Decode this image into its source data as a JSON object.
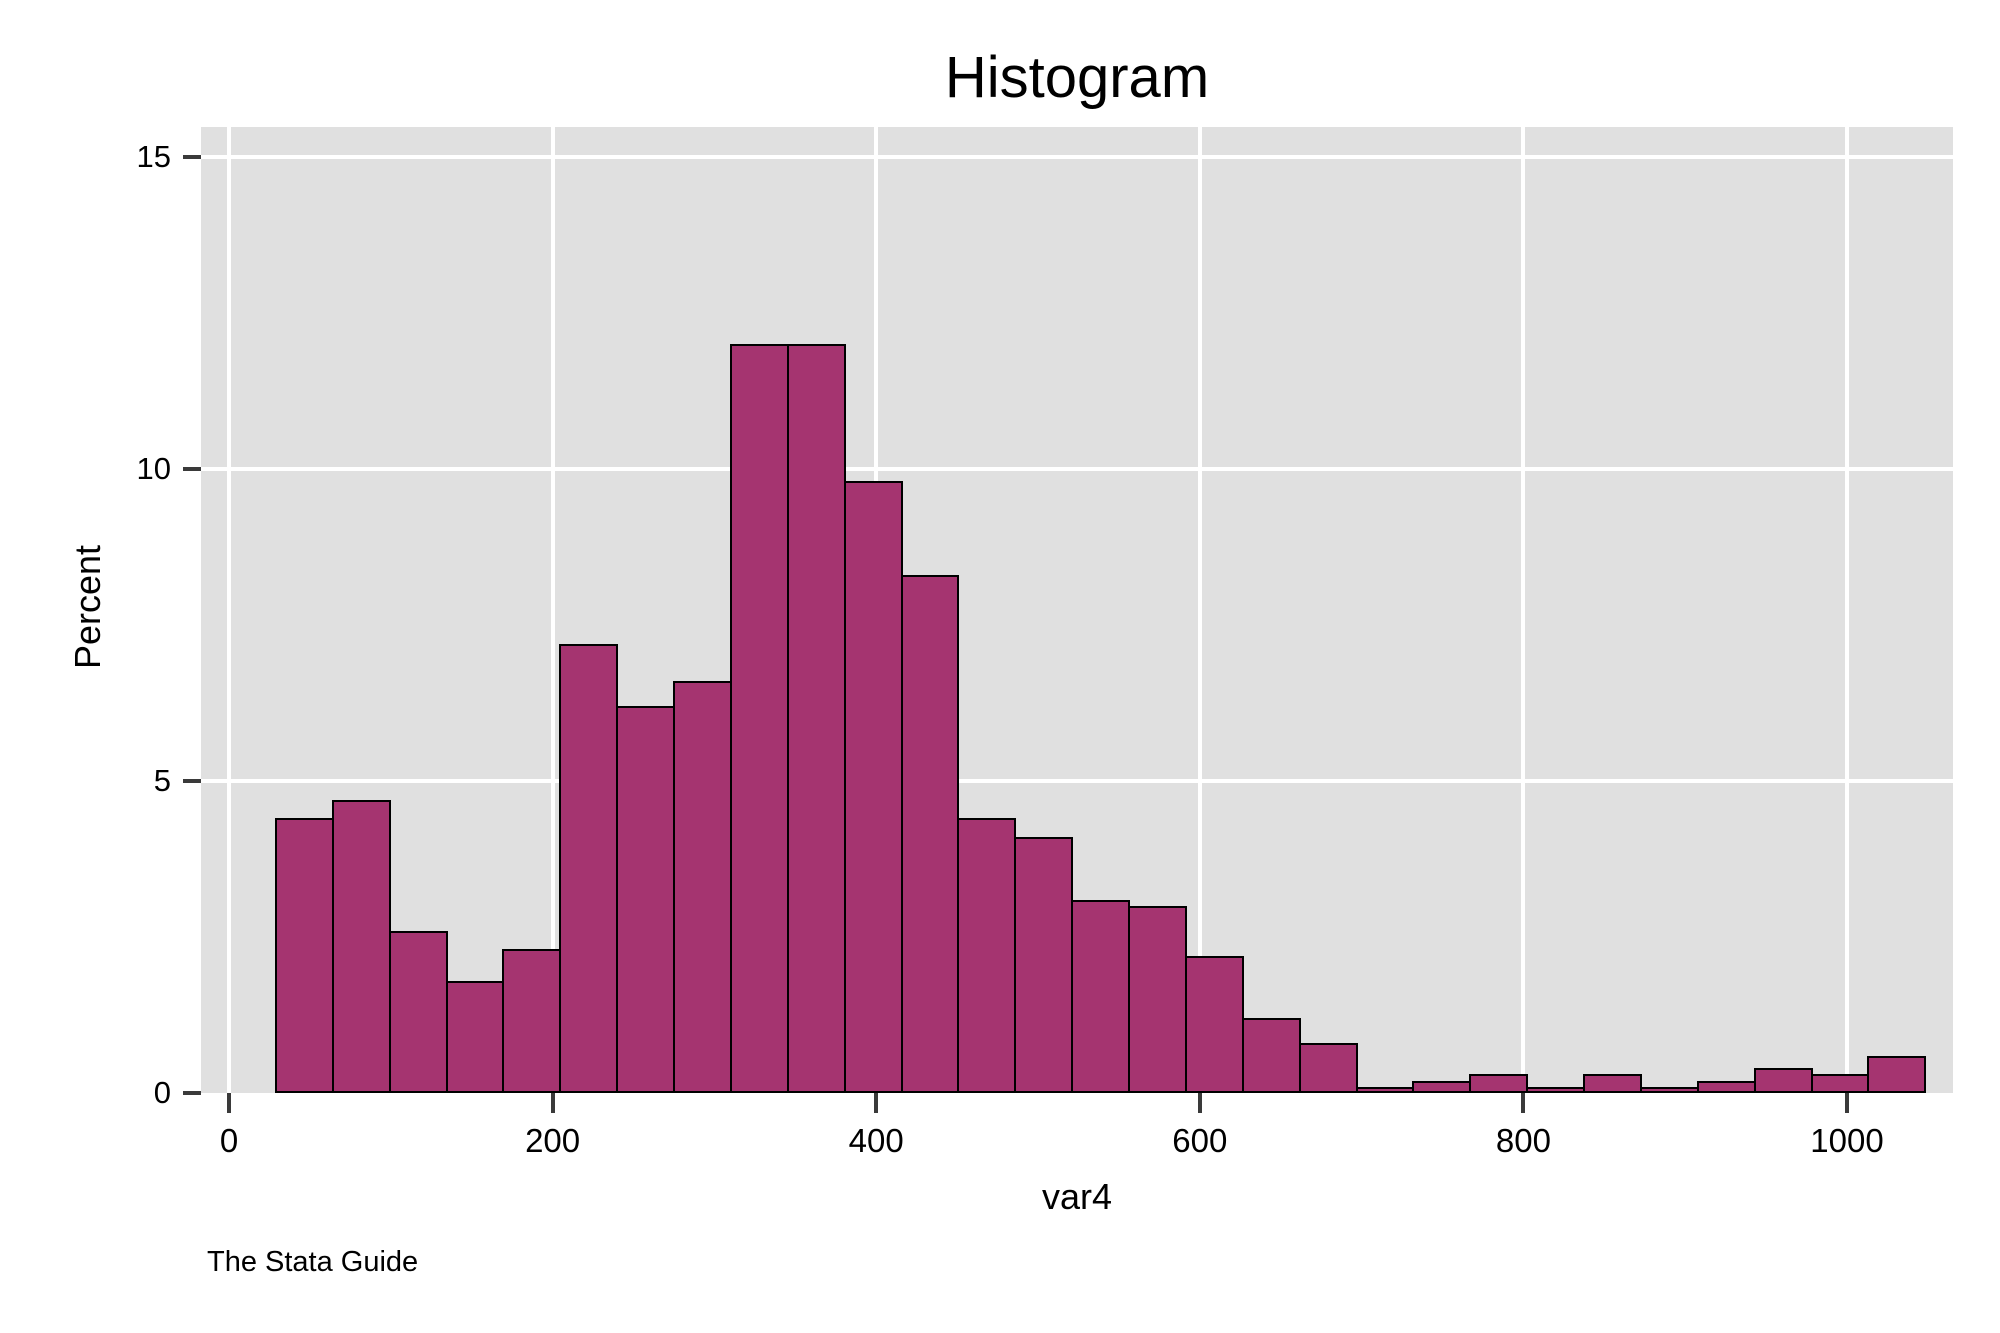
{
  "chart": {
    "title": "Histogram",
    "xlabel": "var4",
    "ylabel": "Percent",
    "watermark": "The Stata Guide"
  },
  "colors": {
    "bar_fill": "#a53470",
    "bar_border": "#000000",
    "plot_background": "#e0e0e0",
    "gridline": "#ffffff",
    "tick": "#3a3a3a",
    "text": "#000000",
    "page_background": "#ffffff"
  },
  "chart_data": {
    "type": "bar",
    "subtype": "histogram",
    "title": "Histogram",
    "xlabel": "var4",
    "ylabel": "Percent",
    "bin_start": 28.4,
    "bin_width": 35.15,
    "values": [
      4.4,
      4.7,
      2.6,
      1.8,
      2.3,
      7.2,
      6.2,
      6.6,
      12.0,
      12.0,
      9.8,
      8.3,
      4.4,
      4.1,
      3.1,
      3.0,
      2.2,
      1.2,
      0.8,
      0.1,
      0.2,
      0.3,
      0.1,
      0.3,
      0.1,
      0.2,
      0.4,
      0.3,
      0.6
    ],
    "x_tick_values": [
      0,
      200,
      400,
      600,
      800,
      1000
    ],
    "x_tick_labels": [
      "0",
      "200",
      "400",
      "600",
      "800",
      "1000"
    ],
    "y_tick_values": [
      0,
      5,
      10,
      15
    ],
    "y_tick_labels": [
      "0",
      "5",
      "10",
      "15"
    ],
    "xlim": [
      -17.3,
      1065.5
    ],
    "ylim": [
      0,
      15.48
    ],
    "grid": true,
    "legend": "none"
  }
}
